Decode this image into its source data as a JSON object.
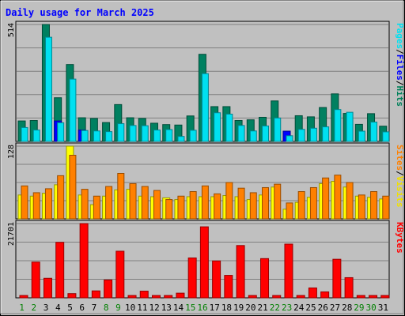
{
  "chart_data": [
    {
      "type": "bar",
      "title": "Daily usage for March 2025",
      "categories": [
        "1",
        "2",
        "3",
        "4",
        "5",
        "6",
        "7",
        "8",
        "9",
        "10",
        "11",
        "12",
        "13",
        "14",
        "15",
        "16",
        "17",
        "18",
        "19",
        "20",
        "21",
        "22",
        "23",
        "24",
        "25",
        "26",
        "27",
        "28",
        "29",
        "30",
        "31"
      ],
      "weekend_days": [
        "1",
        "2",
        "8",
        "9",
        "15",
        "16",
        "22",
        "23",
        "29",
        "30"
      ],
      "ylim": [
        0,
        514
      ],
      "ytick_label": "514",
      "legend": [
        {
          "text": "Pages",
          "color": "#00e0f0"
        },
        {
          "text": "/",
          "color": "#000000"
        },
        {
          "text": "Files",
          "color": "#0000ff"
        },
        {
          "text": "/",
          "color": "#000000"
        },
        {
          "text": "Hits",
          "color": "#00805a"
        }
      ],
      "series": [
        {
          "name": "Hits",
          "color": "#008060",
          "values": [
            90,
            92,
            514,
            192,
            338,
            104,
            101,
            83,
            162,
            104,
            101,
            80,
            74,
            72,
            112,
            383,
            153,
            153,
            92,
            95,
            106,
            178,
            45,
            113,
            108,
            149,
            209,
            123,
            75,
            122,
            67
          ]
        },
        {
          "name": "Files",
          "color": "#0000ff",
          "values": [
            0,
            0,
            0,
            90,
            0,
            50,
            0,
            0,
            0,
            0,
            0,
            0,
            0,
            0,
            0,
            0,
            0,
            0,
            0,
            0,
            0,
            0,
            45,
            0,
            0,
            0,
            0,
            0,
            0,
            0,
            0
          ]
        },
        {
          "name": "Pages",
          "color": "#00e0f0",
          "values": [
            61,
            50,
            458,
            82,
            274,
            48,
            46,
            43,
            78,
            70,
            69,
            50,
            52,
            22,
            49,
            298,
            126,
            120,
            70,
            46,
            68,
            103,
            25,
            53,
            58,
            64,
            140,
            128,
            45,
            85,
            42
          ]
        }
      ]
    },
    {
      "type": "bar",
      "categories": [
        "1",
        "2",
        "3",
        "4",
        "5",
        "6",
        "7",
        "8",
        "9",
        "10",
        "11",
        "12",
        "13",
        "14",
        "15",
        "16",
        "17",
        "18",
        "19",
        "20",
        "21",
        "22",
        "23",
        "24",
        "25",
        "26",
        "27",
        "28",
        "29",
        "30",
        "31"
      ],
      "ylim": [
        0,
        128
      ],
      "ytick_label": "128",
      "legend": [
        {
          "text": "Sites",
          "color": "#ff8000"
        },
        {
          "text": "/",
          "color": "#000000"
        },
        {
          "text": "Visits",
          "color": "#f0e000"
        }
      ],
      "series": [
        {
          "name": "Visits",
          "color": "#ffff00",
          "values": [
            42,
            40,
            45,
            60,
            128,
            42,
            25,
            40,
            51,
            52,
            40,
            39,
            37,
            34,
            39,
            39,
            39,
            41,
            39,
            34,
            42,
            56,
            17,
            29,
            38,
            62,
            66,
            56,
            40,
            38,
            35
          ]
        },
        {
          "name": "Sites",
          "color": "#ff8000",
          "values": [
            58,
            46,
            53,
            76,
            112,
            52,
            40,
            57,
            80,
            62,
            57,
            50,
            34,
            40,
            48,
            58,
            44,
            64,
            54,
            46,
            55,
            61,
            28,
            48,
            55,
            72,
            77,
            64,
            42,
            48,
            40
          ]
        }
      ]
    },
    {
      "type": "bar",
      "categories": [
        "1",
        "2",
        "3",
        "4",
        "5",
        "6",
        "7",
        "8",
        "9",
        "10",
        "11",
        "12",
        "13",
        "14",
        "15",
        "16",
        "17",
        "18",
        "19",
        "20",
        "21",
        "22",
        "23",
        "24",
        "25",
        "26",
        "27",
        "28",
        "29",
        "30",
        "31"
      ],
      "ylim": [
        0,
        21701
      ],
      "ytick_label": "21701",
      "legend": [
        {
          "text": "KBytes",
          "color": "#ff0000"
        }
      ],
      "series": [
        {
          "name": "KBytes",
          "color": "#ff0000",
          "values": [
            672,
            10451,
            5711,
            16214,
            1225,
            21701,
            2032,
            5224,
            13622,
            480,
            1949,
            480,
            480,
            1362,
            11656,
            20752,
            10780,
            6561,
            15285,
            672,
            11467,
            400,
            15698,
            672,
            2892,
            1742,
            11274,
            5902,
            672,
            672,
            672
          ]
        }
      ]
    }
  ]
}
